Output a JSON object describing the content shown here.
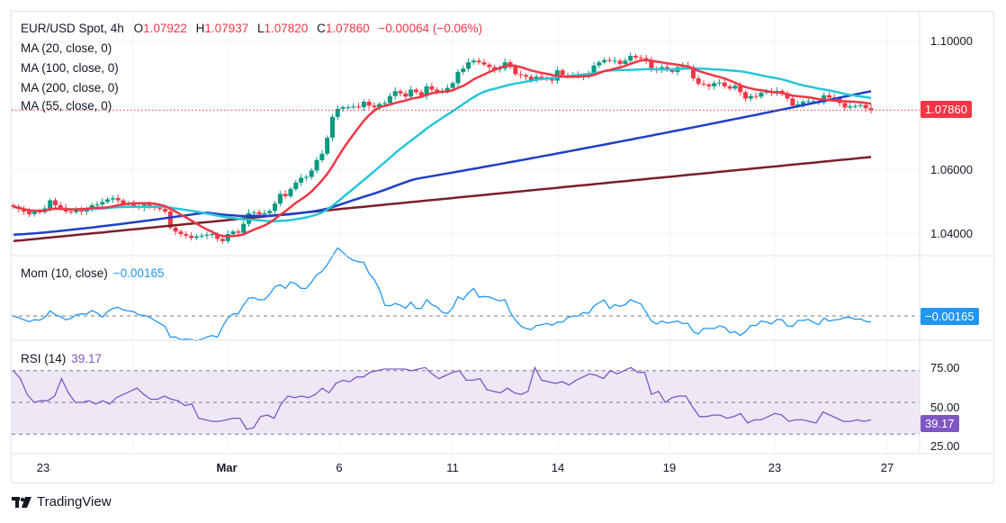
{
  "header": {
    "symbol": "EUR/USD Spot, 4h",
    "open_label": "O",
    "open": "1.07922",
    "high_label": "H",
    "high": "1.07937",
    "low_label": "L",
    "low": "1.07820",
    "close_label": "C",
    "close": "1.07860",
    "change": "−0.00064 (−0.06%)"
  },
  "indicators": {
    "ma20": "MA (20, close, 0)",
    "ma100": "MA (100, close, 0)",
    "ma200": "MA (200, close, 0)",
    "ma55": "MA (55, close, 0)",
    "mom_label": "Mom (10, close)",
    "mom_value": "−0.00165",
    "rsi_label": "RSI (14)",
    "rsi_value": "39.17"
  },
  "price_axis": {
    "ticks": [
      "1.10000",
      "1.06000",
      "1.04000"
    ],
    "last_price_tag": "1.07860"
  },
  "mom_axis": {
    "tag": "−0.00165"
  },
  "rsi_axis": {
    "ticks": [
      "75.00",
      "50.00",
      "25.00"
    ],
    "tag": "39.17"
  },
  "time_axis": {
    "ticks": [
      "23",
      "Mar",
      "6",
      "11",
      "14",
      "19",
      "23",
      "27"
    ]
  },
  "brand": {
    "name": "TradingView"
  },
  "colors": {
    "up": "#089981",
    "down": "#f23645",
    "ma20": "#f23645",
    "ma55": "#26c6da",
    "ma100": "#1e40c8",
    "ma200": "#7b1f2a",
    "mom": "#2196f3",
    "rsi": "#7e57c2",
    "rsi_band": "#ede7f6"
  },
  "chart_data": [
    {
      "type": "candlestick",
      "title": "EUR/USD Spot, 4h",
      "ylim": [
        1.035,
        1.103
      ],
      "yticks": [
        1.04,
        1.06,
        1.1
      ],
      "xticks": [
        "23",
        "Mar",
        "6",
        "11",
        "14",
        "19",
        "23",
        "27"
      ],
      "last_close": 1.0786,
      "candles_close": [
        1.0485,
        1.0478,
        1.047,
        1.0462,
        1.047,
        1.0468,
        1.048,
        1.0505,
        1.049,
        1.0482,
        1.047,
        1.0468,
        1.0475,
        1.047,
        1.0478,
        1.049,
        1.0492,
        1.05,
        1.0508,
        1.0512,
        1.0505,
        1.0492,
        1.0495,
        1.0487,
        1.0482,
        1.0492,
        1.0488,
        1.0482,
        1.0478,
        1.047,
        1.042,
        1.0408,
        1.04,
        1.0395,
        1.0388,
        1.0393,
        1.0395,
        1.0398,
        1.04,
        1.0385,
        1.0378,
        1.04,
        1.0408,
        1.0404,
        1.0432,
        1.0465,
        1.0468,
        1.0462,
        1.0465,
        1.0472,
        1.0495,
        1.0525,
        1.0518,
        1.054,
        1.056,
        1.0575,
        1.0578,
        1.0598,
        1.063,
        1.065,
        1.07,
        1.0765,
        1.079,
        1.0795,
        1.0795,
        1.0797,
        1.0795,
        1.0812,
        1.08,
        1.0795,
        1.0805,
        1.0808,
        1.083,
        1.0845,
        1.0838,
        1.0828,
        1.085,
        1.0842,
        1.083,
        1.086,
        1.085,
        1.0844,
        1.0845,
        1.0855,
        1.087,
        1.0905,
        1.0915,
        1.0935,
        1.094,
        1.0935,
        1.0928,
        1.092,
        1.0912,
        1.0915,
        1.0935,
        1.092,
        1.0898,
        1.0895,
        1.089,
        1.088,
        1.089,
        1.0885,
        1.0882,
        1.0878,
        1.091,
        1.0895,
        1.0892,
        1.0895,
        1.089,
        1.0894,
        1.09,
        1.0925,
        1.0935,
        1.0942,
        1.094,
        1.094,
        1.093,
        1.094,
        1.0955,
        1.095,
        1.0948,
        1.094,
        1.0915,
        1.091,
        1.092,
        1.0912,
        1.0905,
        1.092,
        1.0925,
        1.092,
        1.0885,
        1.0868,
        1.0866,
        1.086,
        1.087,
        1.0872,
        1.086,
        1.0853,
        1.0862,
        1.0842,
        1.0822,
        1.083,
        1.0828,
        1.084,
        1.0845,
        1.084,
        1.0846,
        1.0838,
        1.0822,
        1.08,
        1.0804,
        1.0812,
        1.0814,
        1.0814,
        1.081,
        1.0832,
        1.0825,
        1.0822,
        1.0808,
        1.0794,
        1.0798,
        1.0799,
        1.0802,
        1.0792,
        1.0786
      ],
      "moving_averages": [
        {
          "name": "MA (20, close, 0)",
          "color": "#f23645"
        },
        {
          "name": "MA (55, close, 0)",
          "color": "#26c6da"
        },
        {
          "name": "MA (100, close, 0)",
          "color": "#1e40c8"
        },
        {
          "name": "MA (200, close, 0)",
          "color": "#7b1f2a"
        }
      ]
    },
    {
      "type": "line",
      "title": "Mom (10, close)",
      "last_value": -0.00165,
      "zero_line": 0
    },
    {
      "type": "line",
      "title": "RSI (14)",
      "last_value": 39.17,
      "ylim": [
        20,
        85
      ],
      "yticks": [
        75,
        50,
        25
      ],
      "band": [
        30,
        70
      ],
      "values": [
        70,
        65,
        55,
        50,
        51,
        51,
        54,
        65,
        56,
        50,
        50,
        51,
        49,
        51,
        49,
        53,
        55,
        57,
        59,
        55,
        52,
        52,
        54,
        52,
        51,
        48,
        49,
        40,
        39,
        38,
        38,
        39,
        40,
        40,
        33,
        34,
        41,
        42,
        40,
        49,
        54,
        53,
        54,
        53,
        55,
        59,
        56,
        62,
        64,
        63,
        66,
        66,
        69,
        70,
        71,
        71,
        71,
        71,
        70,
        71,
        72,
        68,
        65,
        67,
        69,
        70,
        64,
        64,
        65,
        58,
        57,
        56,
        59,
        56,
        55,
        57,
        72,
        64,
        63,
        62,
        63,
        61,
        64,
        66,
        68,
        67,
        65,
        70,
        68,
        70,
        72,
        69,
        69,
        55,
        57,
        50,
        53,
        54,
        54,
        47,
        41,
        41,
        42,
        42,
        40,
        41,
        43,
        37,
        39,
        39,
        41,
        43,
        42,
        38,
        39,
        39,
        38,
        37,
        44,
        42,
        40,
        38,
        38,
        39,
        38,
        39
      ]
    }
  ]
}
